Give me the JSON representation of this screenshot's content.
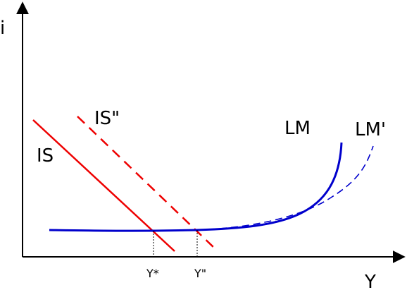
{
  "axes": {
    "y_label": "i",
    "x_label": "Y"
  },
  "curves": {
    "is": "IS",
    "is_shifted": "IS\"",
    "lm": "LM",
    "lm_shifted": "LM'"
  },
  "ticks": {
    "y_star": "Y*",
    "y_double": "Y\""
  }
}
